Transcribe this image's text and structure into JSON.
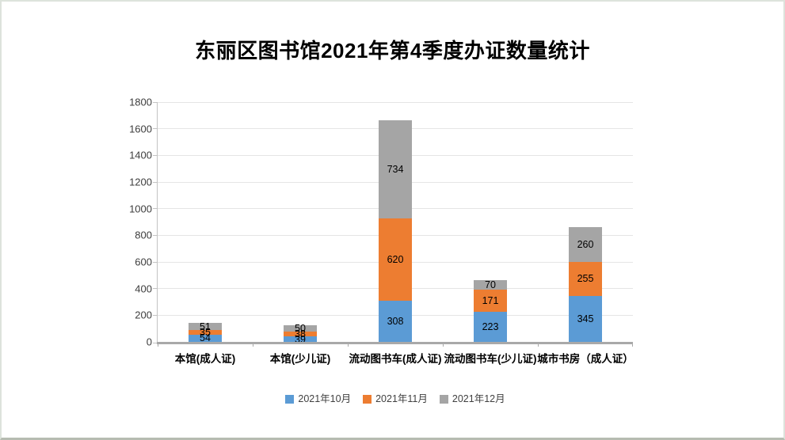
{
  "chart_data": {
    "type": "bar",
    "stacked": true,
    "title": "东丽区图书馆2021年第4季度办证数量统计",
    "categories": [
      "本馆(成人证)",
      "本馆(少儿证)",
      "流动图书车(成人证)",
      "流动图书车(少儿证)",
      "城市书房（成人证）"
    ],
    "series": [
      {
        "name": "2021年10月",
        "color": "#5B9BD5",
        "values": [
          54,
          39,
          308,
          223,
          345
        ]
      },
      {
        "name": "2021年11月",
        "color": "#ED7D31",
        "values": [
          35,
          38,
          620,
          171,
          255
        ]
      },
      {
        "name": "2021年12月",
        "color": "#A5A5A5",
        "values": [
          51,
          50,
          734,
          70,
          260
        ]
      }
    ],
    "xlabel": "",
    "ylabel": "",
    "ylim": [
      0,
      1800
    ],
    "ytick_step": 200,
    "yticks": [
      0,
      200,
      400,
      600,
      800,
      1000,
      1200,
      1400,
      1600,
      1800
    ],
    "grid": true,
    "legend_position": "bottom",
    "data_labels": true,
    "colors": {
      "gridline": "#e5e5e5",
      "axis": "#a9a9a9",
      "tick": "#c3c3c3",
      "axis_label": "#3d3d3d",
      "legend_text": "#404040"
    }
  }
}
